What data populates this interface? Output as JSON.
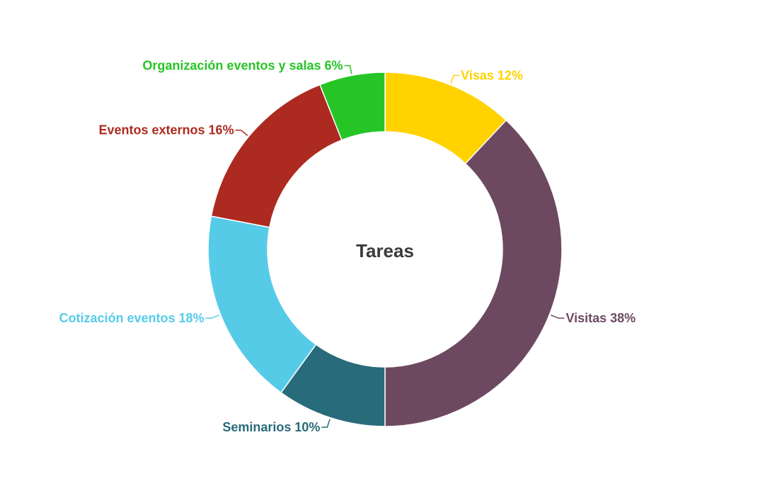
{
  "chart_data": {
    "type": "pie",
    "title": "Tareas",
    "categories": [
      "Visas",
      "Visitas",
      "Seminarios",
      "Cotización eventos",
      "Eventos externos",
      "Organización eventos y salas"
    ],
    "values": [
      12,
      38,
      10,
      18,
      16,
      6
    ],
    "labels": [
      "Visas 12%",
      "Visitas 38%",
      "Seminarios 10%",
      "Cotización eventos 18%",
      "Eventos externos 16%",
      "Organización eventos y salas 6%"
    ],
    "colors": [
      "#FFD200",
      "#6C4961",
      "#286B7A",
      "#56CBE8",
      "#AD2A20",
      "#26C525"
    ],
    "donut": true,
    "legend": "none"
  }
}
